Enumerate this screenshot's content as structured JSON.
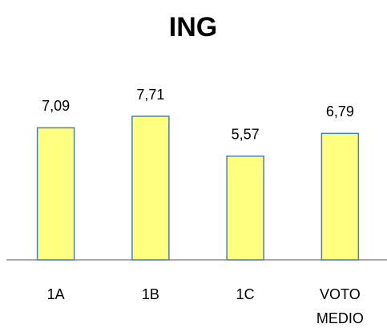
{
  "chart_data": {
    "type": "bar",
    "title": "ING",
    "categories": [
      "1A",
      "1B",
      "1C",
      "VOTO MEDIO"
    ],
    "values": [
      7.09,
      7.71,
      5.57,
      6.79
    ],
    "value_labels": [
      "7,09",
      "7,71",
      "5,57",
      "6,79"
    ],
    "color": "#ffff80",
    "edgecolor": "#4a7ebb"
  }
}
